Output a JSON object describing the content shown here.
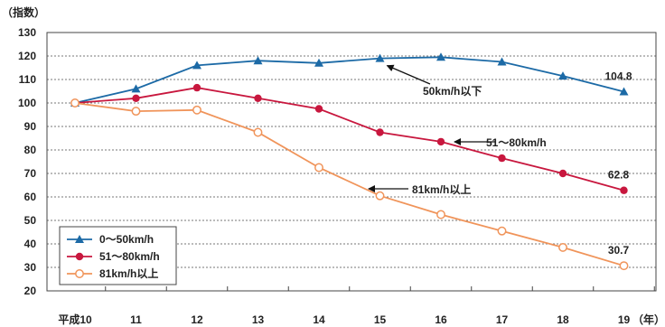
{
  "chart_data": {
    "type": "line",
    "y_unit_label": "（指数）",
    "x_unit_label": "（年）",
    "categories": [
      "平成10",
      "11",
      "12",
      "13",
      "14",
      "15",
      "16",
      "17",
      "18",
      "19"
    ],
    "ylim": [
      20,
      130
    ],
    "yticks": [
      20,
      30,
      40,
      50,
      60,
      70,
      80,
      90,
      100,
      110,
      120,
      130
    ],
    "grid": "horizontal-dotted",
    "legend_position": "bottom-left",
    "series": [
      {
        "name": "0〜50km/h",
        "color": "#1c6aa6",
        "marker": "triangle",
        "values": [
          100,
          106,
          116,
          118,
          117,
          119,
          119.5,
          117.5,
          111.5,
          104.8
        ]
      },
      {
        "name": "51〜80km/h",
        "color": "#c8173e",
        "marker": "circle",
        "values": [
          100,
          102,
          106.5,
          102,
          97.5,
          87.5,
          83.5,
          76.5,
          70,
          62.8
        ]
      },
      {
        "name": "81km/h以上",
        "color": "#f0945a",
        "marker": "open-circle",
        "values": [
          100,
          96.5,
          97,
          87.5,
          72.5,
          60.5,
          52.5,
          45.5,
          38.5,
          30.7
        ]
      }
    ],
    "end_labels": [
      "104.8",
      "62.8",
      "30.7"
    ],
    "annotations": [
      {
        "text": "50km/h以下",
        "series": 0,
        "anchor_index": 5
      },
      {
        "text": "51〜80km/h",
        "series": 1,
        "anchor_index": 6
      },
      {
        "text": "81km/h以上",
        "series": 2,
        "anchor_index": 5
      }
    ]
  }
}
